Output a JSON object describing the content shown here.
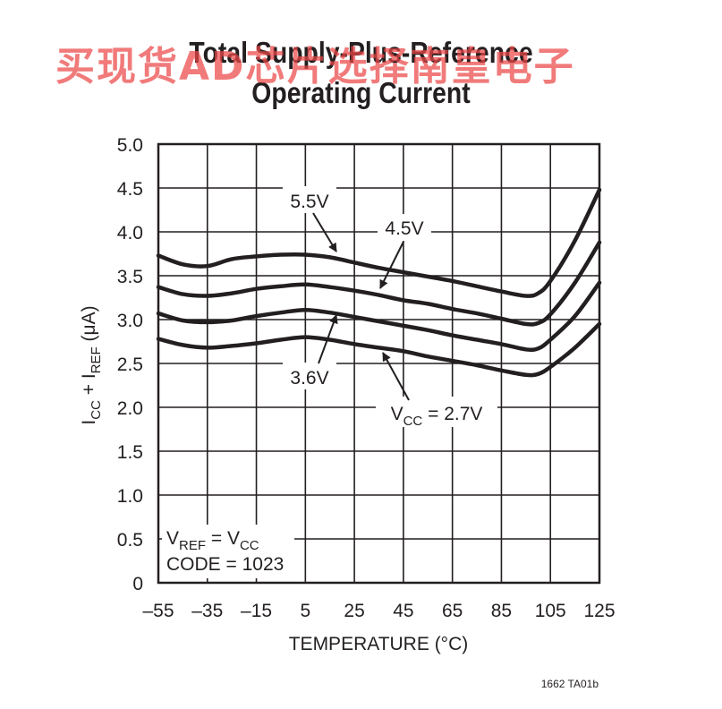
{
  "chart_data": {
    "type": "line",
    "title_line1": "Total Supply-Plus-Reference",
    "title_line2": "Operating Current",
    "xlabel": "TEMPERATURE (°C)",
    "ylabel_parts": {
      "i1": "I",
      "s1": "CC",
      "mid": " + I",
      "s2": "REF",
      "unit": " (μA)"
    },
    "xlim": [
      -55,
      125
    ],
    "ylim": [
      0,
      5
    ],
    "xticks": [
      "–55",
      "–35",
      "–15",
      "5",
      "25",
      "45",
      "65",
      "85",
      "105",
      "125"
    ],
    "xtick_values": [
      -55,
      -35,
      -15,
      5,
      25,
      45,
      65,
      85,
      105,
      125
    ],
    "yticks": [
      "5.0",
      "4.5",
      "4.0",
      "3.5",
      "3.0",
      "2.5",
      "2.0",
      "1.5",
      "1.0",
      "0.5",
      "0"
    ],
    "ytick_values": [
      5.0,
      4.5,
      4.0,
      3.5,
      3.0,
      2.5,
      2.0,
      1.5,
      1.0,
      0.5,
      0
    ],
    "grid": true,
    "series": [
      {
        "name": "5.5V",
        "x": [
          -55,
          -45,
          -35,
          -25,
          -15,
          -5,
          5,
          15,
          25,
          35,
          45,
          55,
          65,
          75,
          85,
          95,
          100,
          105,
          115,
          125
        ],
        "y": [
          3.73,
          3.63,
          3.61,
          3.69,
          3.72,
          3.74,
          3.74,
          3.71,
          3.65,
          3.59,
          3.54,
          3.49,
          3.44,
          3.38,
          3.32,
          3.27,
          3.3,
          3.44,
          3.9,
          4.48
        ]
      },
      {
        "name": "4.5V",
        "x": [
          -55,
          -45,
          -35,
          -25,
          -15,
          -5,
          5,
          15,
          25,
          35,
          45,
          55,
          65,
          75,
          85,
          95,
          100,
          105,
          115,
          125
        ],
        "y": [
          3.37,
          3.29,
          3.27,
          3.3,
          3.35,
          3.38,
          3.4,
          3.37,
          3.33,
          3.28,
          3.22,
          3.18,
          3.12,
          3.07,
          3.01,
          2.95,
          2.96,
          3.06,
          3.42,
          3.88
        ]
      },
      {
        "name": "3.6V",
        "x": [
          -55,
          -45,
          -35,
          -25,
          -15,
          -5,
          5,
          15,
          25,
          35,
          45,
          55,
          65,
          75,
          85,
          95,
          100,
          105,
          115,
          125
        ],
        "y": [
          3.07,
          2.99,
          2.97,
          2.99,
          3.04,
          3.08,
          3.11,
          3.08,
          3.03,
          2.98,
          2.93,
          2.88,
          2.82,
          2.77,
          2.72,
          2.66,
          2.67,
          2.77,
          3.04,
          3.42
        ]
      },
      {
        "name": "VCC = 2.7V",
        "x": [
          -55,
          -45,
          -35,
          -25,
          -15,
          -5,
          5,
          15,
          25,
          35,
          45,
          55,
          65,
          75,
          85,
          95,
          100,
          105,
          115,
          125
        ],
        "y": [
          2.78,
          2.71,
          2.68,
          2.7,
          2.73,
          2.77,
          2.8,
          2.77,
          2.72,
          2.68,
          2.64,
          2.58,
          2.53,
          2.48,
          2.42,
          2.37,
          2.38,
          2.46,
          2.68,
          2.95
        ]
      }
    ],
    "annotations": {
      "a55": "5.5V",
      "a45": "4.5V",
      "a36": "3.6V",
      "a27": {
        "v": "V",
        "sub": "CC",
        "rest": " = 2.7V"
      },
      "note_line1": {
        "v1": "V",
        "s1": "REF",
        "mid": " = V",
        "s2": "CC"
      },
      "note_line2": "CODE = 1023"
    }
  },
  "figure_code": "1662 TA01b",
  "watermark": "买现货AD芯片选择南皇电子"
}
